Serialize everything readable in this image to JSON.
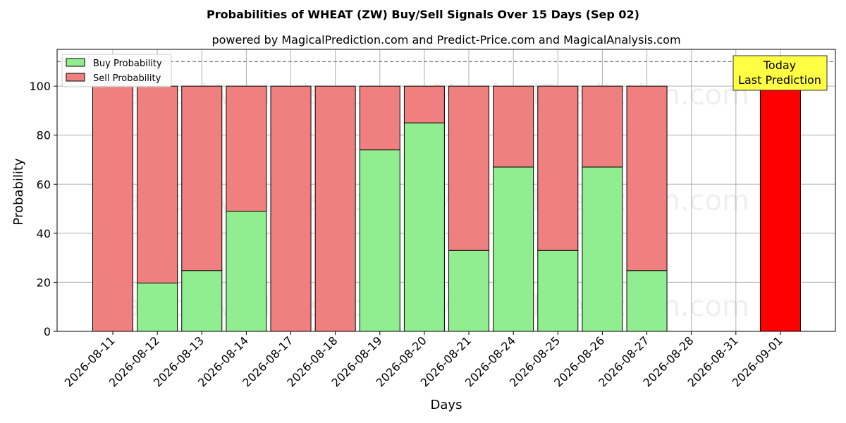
{
  "chart_data": {
    "type": "bar",
    "title": "Probabilities of WHEAT (ZW) Buy/Sell Signals Over 15 Days (Sep 02)",
    "subtitle": "powered by MagicalPrediction.com and Predict-Price.com and MagicalAnalysis.com",
    "xlabel": "Days",
    "ylabel": "Probability",
    "ylim": [
      0,
      115
    ],
    "yticks": [
      0,
      20,
      40,
      60,
      80,
      100
    ],
    "threshold": 110,
    "grid": true,
    "legend_position": "top-left",
    "categories": [
      "2026-08-11",
      "2026-08-12",
      "2026-08-13",
      "2026-08-14",
      "2026-08-17",
      "2026-08-18",
      "2026-08-19",
      "2026-08-20",
      "2026-08-21",
      "2026-08-24",
      "2026-08-25",
      "2026-08-26",
      "2026-08-27",
      "2026-08-28",
      "2026-08-31",
      "2026-09-01"
    ],
    "series": [
      {
        "name": "Buy Probability",
        "color": "#90ee90",
        "values": [
          0,
          19.7,
          24.8,
          49,
          0,
          0,
          74,
          85,
          33,
          67,
          33,
          67,
          24.8,
          null,
          null,
          0
        ]
      },
      {
        "name": "Sell Probability",
        "color": "#f08080",
        "values": [
          100,
          80.3,
          75.2,
          51,
          100,
          100,
          26,
          15,
          67,
          33,
          67,
          33,
          75.2,
          null,
          null,
          0
        ]
      }
    ],
    "today": {
      "category": "2026-09-01",
      "value": 100,
      "color": "#ff0000",
      "label_lines": [
        "Today",
        "Last Prediction"
      ],
      "label_color": "#ffff44"
    }
  },
  "watermarks": [
    "MagicalAnalysis.com",
    "MagicalPrediction.com"
  ]
}
